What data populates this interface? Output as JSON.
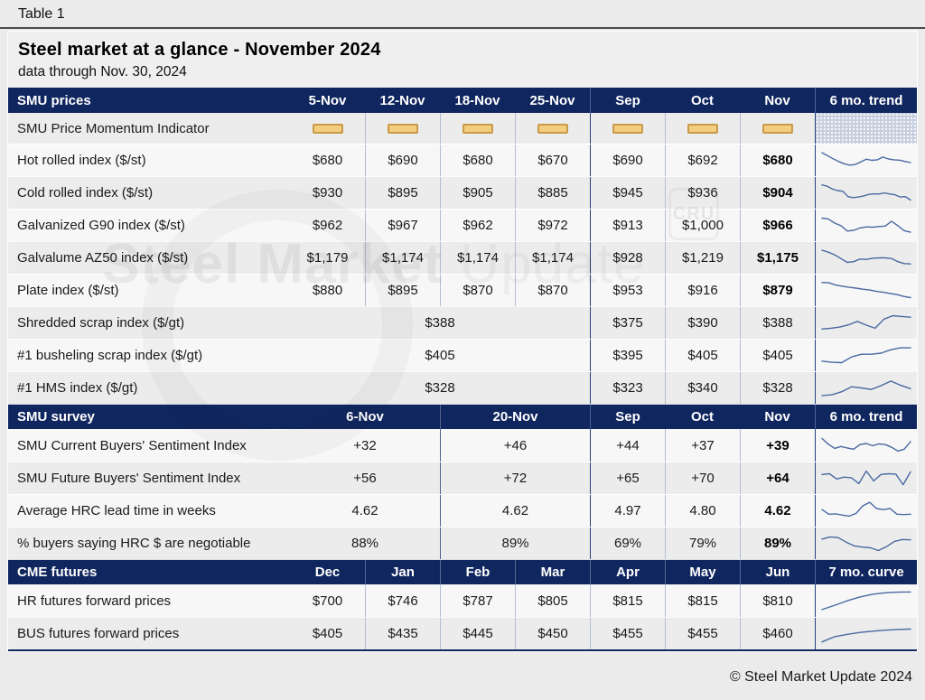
{
  "page": {
    "table_label": "Table 1",
    "title": "Steel market at a glance - November 2024",
    "subtitle": "data through Nov. 30, 2024",
    "footer": "© Steel Market Update 2024",
    "watermark": {
      "bold": "Steel Market",
      "light": "Update",
      "cru": "CRU"
    }
  },
  "colors": {
    "header_navy": "#10265e",
    "sparkline_blue": "#4a69a1",
    "momentum_fill": "#f3cd80",
    "momentum_border": "#c99a47"
  },
  "sections": {
    "prices": {
      "header": {
        "label": "SMU prices",
        "columns": [
          "5-Nov",
          "12-Nov",
          "18-Nov",
          "25-Nov",
          "Sep",
          "Oct",
          "Nov"
        ],
        "trend": "6 mo. trend"
      },
      "momentum_row": {
        "label": "SMU Price Momentum Indicator",
        "indicator": "neutral",
        "indicator_count": 7
      },
      "rows": [
        {
          "label": "Hot rolled index ($/st)",
          "values": [
            "$680",
            "$690",
            "$680",
            "$670",
            "$690",
            "$692",
            "$680"
          ],
          "trend": [
            90,
            75,
            58,
            44,
            32,
            25,
            28,
            42,
            56,
            50,
            53,
            67,
            57,
            53,
            51,
            44,
            38
          ]
        },
        {
          "label": "Cold rolled index ($/st)",
          "values": [
            "$930",
            "$895",
            "$905",
            "$885",
            "$945",
            "$936",
            "$904"
          ],
          "trend": [
            92,
            85,
            70,
            62,
            58,
            30,
            25,
            28,
            34,
            42,
            45,
            44,
            50,
            44,
            40,
            28,
            30,
            12
          ]
        },
        {
          "label": "Galvanized G90 index ($/st)",
          "values": [
            "$962",
            "$967",
            "$962",
            "$972",
            "$913",
            "$1,000",
            "$966"
          ],
          "trend": [
            88,
            84,
            62,
            48,
            20,
            24,
            36,
            42,
            40,
            44,
            46,
            72,
            48,
            22,
            14
          ]
        },
        {
          "label": "Galvalume AZ50 index ($/st)",
          "values": [
            "$1,179",
            "$1,174",
            "$1,174",
            "$1,174",
            "$928",
            "$1,219",
            "$1,175"
          ],
          "trend": [
            90,
            80,
            66,
            46,
            26,
            30,
            44,
            42,
            48,
            50,
            50,
            46,
            30,
            20,
            18
          ]
        },
        {
          "label": "Plate index ($/st)",
          "values": [
            "$880",
            "$895",
            "$870",
            "$870",
            "$953",
            "$916",
            "$879"
          ],
          "trend": [
            92,
            90,
            78,
            72,
            66,
            62,
            56,
            52,
            45,
            40,
            34,
            28,
            18,
            12
          ]
        }
      ],
      "merged_rows": [
        {
          "label": "Shredded scrap index ($/gt)",
          "weekly": "$388",
          "monthly": [
            "$375",
            "$390",
            "$388"
          ],
          "trend": [
            18,
            22,
            28,
            40,
            58,
            38,
            22,
            70,
            88,
            84,
            80
          ]
        },
        {
          "label": "#1 busheling scrap index ($/gt)",
          "weekly": "$405",
          "monthly": [
            "$395",
            "$405",
            "$405"
          ],
          "trend": [
            20,
            14,
            12,
            42,
            56,
            56,
            62,
            80,
            90,
            90
          ]
        },
        {
          "label": "#1 HMS index ($/gt)",
          "weekly": "$328",
          "monthly": [
            "$323",
            "$340",
            "$328"
          ],
          "trend": [
            10,
            14,
            30,
            56,
            50,
            42,
            62,
            86,
            64,
            46
          ]
        }
      ]
    },
    "survey": {
      "header": {
        "label": "SMU survey",
        "columns": [
          "6-Nov",
          "20-Nov",
          "Sep",
          "Oct",
          "Nov"
        ],
        "trend": "6 mo. trend"
      },
      "rows": [
        {
          "label": "SMU Current Buyers' Sentiment Index",
          "biweekly": [
            "+32",
            "+46"
          ],
          "monthly": [
            "+44",
            "+37",
            "+39"
          ],
          "trend": [
            88,
            58,
            36,
            46,
            38,
            32,
            56,
            62,
            50,
            60,
            56,
            42,
            22,
            32,
            72
          ]
        },
        {
          "label": "SMU Future Buyers' Sentiment Index",
          "biweekly": [
            "+56",
            "+72"
          ],
          "monthly": [
            "+65",
            "+70",
            "+64"
          ],
          "trend": [
            70,
            74,
            46,
            56,
            52,
            22,
            88,
            36,
            70,
            74,
            72,
            16,
            84
          ]
        },
        {
          "label": "Average HRC lead time in weeks",
          "biweekly": [
            "4.62",
            "4.62"
          ],
          "monthly": [
            "4.97",
            "4.80",
            "4.62"
          ],
          "trend": [
            56,
            32,
            34,
            27,
            22,
            36,
            76,
            95,
            62,
            56,
            62,
            32,
            30,
            32
          ]
        },
        {
          "label": "% buyers saying HRC $ are negotiable",
          "biweekly": [
            "88%",
            "89%"
          ],
          "monthly": [
            "69%",
            "79%",
            "89%"
          ],
          "trend": [
            72,
            84,
            80,
            56,
            36,
            30,
            26,
            12,
            32,
            60,
            70,
            68
          ]
        }
      ]
    },
    "futures": {
      "header": {
        "label": "CME futures",
        "columns": [
          "Dec",
          "Jan",
          "Feb",
          "Mar",
          "Apr",
          "May",
          "Jun"
        ],
        "trend": "7 mo. curve"
      },
      "rows": [
        {
          "label": "HR futures forward prices",
          "values": [
            "$700",
            "$746",
            "$787",
            "$805",
            "$815",
            "$815",
            "$810"
          ],
          "trend": [
            5,
            28,
            52,
            72,
            86,
            94,
            97,
            98
          ]
        },
        {
          "label": "BUS futures forward prices",
          "values": [
            "$405",
            "$435",
            "$445",
            "$450",
            "$455",
            "$455",
            "$460"
          ],
          "trend": [
            6,
            34,
            46,
            56,
            63,
            68,
            72,
            74
          ]
        }
      ]
    }
  }
}
